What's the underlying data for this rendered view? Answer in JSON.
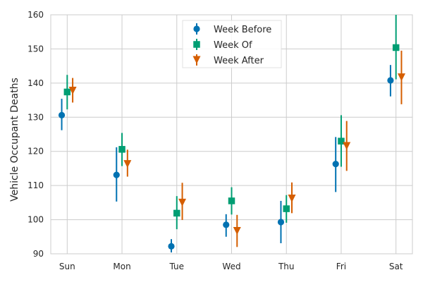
{
  "chart_data": {
    "type": "scatter",
    "title": "",
    "xlabel": "",
    "ylabel": "Vehicle Occupant Deaths",
    "categories": [
      "Sun",
      "Mon",
      "Tue",
      "Wed",
      "Thu",
      "Fri",
      "Sat"
    ],
    "ylim": [
      90,
      160
    ],
    "yticks": [
      90,
      100,
      110,
      120,
      130,
      140,
      150,
      160
    ],
    "grid": true,
    "legend_position": "top-center",
    "series": [
      {
        "name": "Week Before",
        "marker": "circle",
        "color": "#0072B2",
        "values": [
          130.6,
          113.1,
          92.2,
          98.5,
          99.3,
          116.3,
          140.8
        ],
        "err_low": [
          126.2,
          105.3,
          90.4,
          95.0,
          93.1,
          108.1,
          136.1
        ],
        "err_high": [
          135.4,
          121.2,
          94.3,
          101.6,
          105.5,
          124.2,
          145.3
        ]
      },
      {
        "name": "Week Of",
        "marker": "square",
        "color": "#009E73",
        "values": [
          137.4,
          120.6,
          101.9,
          105.5,
          103.2,
          123.0,
          150.4
        ],
        "err_low": [
          132.3,
          115.7,
          97.2,
          101.5,
          99.1,
          115.5,
          141.1
        ],
        "err_high": [
          142.4,
          125.4,
          106.9,
          109.5,
          107.2,
          130.6,
          160.0
        ]
      },
      {
        "name": "Week After",
        "marker": "triangle-down",
        "color": "#D55E00",
        "values": [
          137.8,
          116.3,
          105.0,
          96.7,
          106.2,
          121.6,
          141.7
        ],
        "err_low": [
          134.3,
          112.6,
          99.9,
          92.0,
          101.9,
          114.3,
          133.8
        ],
        "err_high": [
          141.5,
          120.5,
          110.8,
          101.4,
          110.9,
          128.9,
          149.5
        ]
      }
    ]
  }
}
